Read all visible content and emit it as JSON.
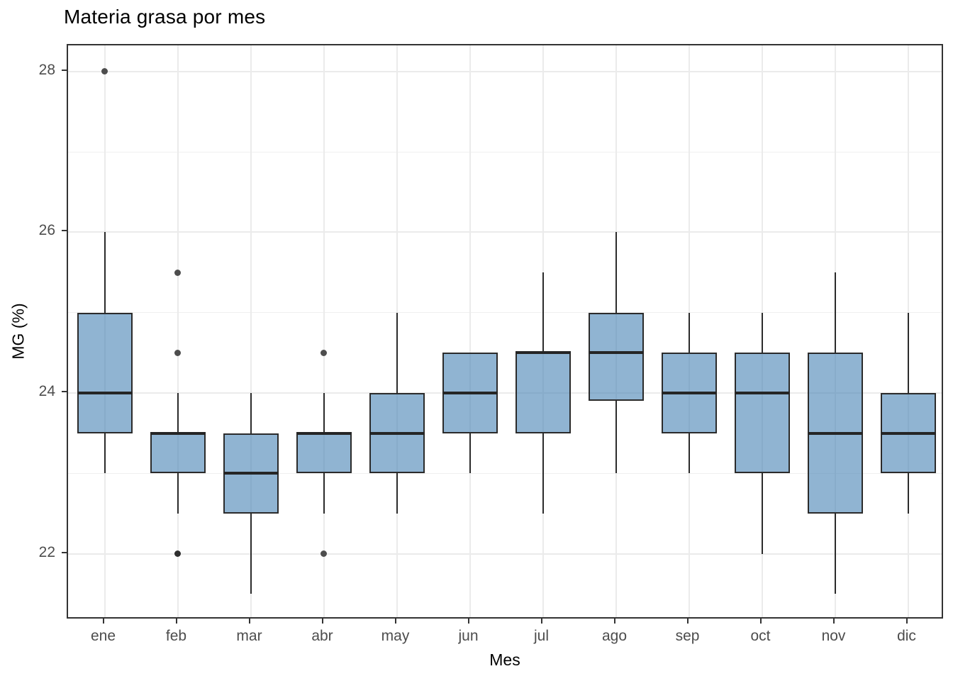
{
  "chart_data": {
    "type": "boxplot",
    "title": "Materia grasa por mes",
    "xlabel": "Mes",
    "ylabel": "MG (%)",
    "categories": [
      "ene",
      "feb",
      "mar",
      "abr",
      "may",
      "jun",
      "jul",
      "ago",
      "sep",
      "oct",
      "nov",
      "dic"
    ],
    "ylim": [
      21.175,
      28.325
    ],
    "y_major_ticks": [
      28,
      26,
      24,
      22
    ],
    "y_minor_ticks": [
      27,
      25,
      23
    ],
    "grid": true,
    "legend": "none",
    "box_fill": "rgba(70,130,180,0.60)",
    "box_stroke": "#2b2b2b",
    "outlier_color": "#4d4d4d",
    "outlier_dark_color": "#2e2e2e",
    "series": [
      {
        "month": "ene",
        "whisker_low": 23.0,
        "q1": 23.5,
        "median": 24.0,
        "q3": 25.0,
        "whisker_high": 26.0,
        "outliers": [
          {
            "value": 28.0,
            "dark": false
          }
        ]
      },
      {
        "month": "feb",
        "whisker_low": 22.5,
        "q1": 23.0,
        "median": 23.5,
        "q3": 23.5,
        "whisker_high": 24.0,
        "outliers": [
          {
            "value": 25.5,
            "dark": false
          },
          {
            "value": 24.5,
            "dark": false
          },
          {
            "value": 22.0,
            "dark": true
          }
        ]
      },
      {
        "month": "mar",
        "whisker_low": 21.5,
        "q1": 22.5,
        "median": 23.0,
        "q3": 23.5,
        "whisker_high": 24.0,
        "outliers": []
      },
      {
        "month": "abr",
        "whisker_low": 22.5,
        "q1": 23.0,
        "median": 23.5,
        "q3": 23.5,
        "whisker_high": 24.0,
        "outliers": [
          {
            "value": 24.5,
            "dark": false
          },
          {
            "value": 22.0,
            "dark": false
          }
        ]
      },
      {
        "month": "may",
        "whisker_low": 22.5,
        "q1": 23.0,
        "median": 23.5,
        "q3": 24.0,
        "whisker_high": 25.0,
        "outliers": []
      },
      {
        "month": "jun",
        "whisker_low": 23.0,
        "q1": 23.5,
        "median": 24.0,
        "q3": 24.5,
        "whisker_high": 24.5,
        "outliers": []
      },
      {
        "month": "jul",
        "whisker_low": 22.5,
        "q1": 23.5,
        "median": 24.5,
        "q3": 24.5,
        "whisker_high": 25.5,
        "outliers": []
      },
      {
        "month": "ago",
        "whisker_low": 23.0,
        "q1": 23.9,
        "median": 24.5,
        "q3": 25.0,
        "whisker_high": 26.0,
        "outliers": []
      },
      {
        "month": "sep",
        "whisker_low": 23.0,
        "q1": 23.5,
        "median": 24.0,
        "q3": 24.5,
        "whisker_high": 25.0,
        "outliers": []
      },
      {
        "month": "oct",
        "whisker_low": 22.0,
        "q1": 23.0,
        "median": 24.0,
        "q3": 24.5,
        "whisker_high": 25.0,
        "outliers": []
      },
      {
        "month": "nov",
        "whisker_low": 21.5,
        "q1": 22.5,
        "median": 23.5,
        "q3": 24.5,
        "whisker_high": 25.5,
        "outliers": []
      },
      {
        "month": "dic",
        "whisker_low": 22.5,
        "q1": 23.0,
        "median": 23.5,
        "q3": 24.0,
        "whisker_high": 25.0,
        "outliers": []
      }
    ]
  }
}
